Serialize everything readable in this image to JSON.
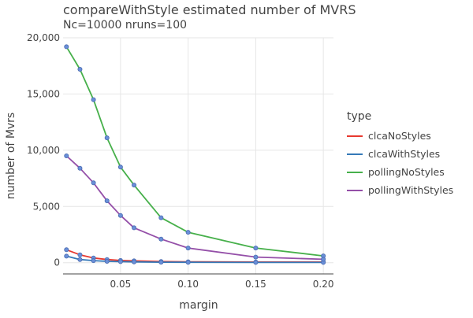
{
  "chart_data": {
    "type": "line",
    "title": "compareWithStyle estimated number of MVRS",
    "subtitle": "Nc=10000 nruns=100",
    "xlabel": "margin",
    "ylabel": "number of Mvrs",
    "xlim": [
      0.0075,
      0.2075
    ],
    "ylim": [
      -1000,
      20000
    ],
    "xticks": [
      {
        "value": 0.05,
        "label": "0.05"
      },
      {
        "value": 0.1,
        "label": "0.10"
      },
      {
        "value": 0.15,
        "label": "0.15"
      },
      {
        "value": 0.2,
        "label": "0.20"
      }
    ],
    "yticks": [
      {
        "value": 0,
        "label": "0"
      },
      {
        "value": 5000,
        "label": "5,000"
      },
      {
        "value": 10000,
        "label": "10,000"
      },
      {
        "value": 15000,
        "label": "15,000"
      },
      {
        "value": 20000,
        "label": "20,000"
      }
    ],
    "grid": true,
    "legend_title": "type",
    "legend_position": "right",
    "marker_color": "#6a8fd8",
    "x": [
      0.01,
      0.02,
      0.03,
      0.04,
      0.05,
      0.06,
      0.08,
      0.1,
      0.15,
      0.2
    ],
    "series": [
      {
        "name": "clcaNoStyles",
        "color": "#e8392f",
        "values": [
          1150,
          700,
          420,
          280,
          200,
          160,
          100,
          80,
          60,
          60
        ]
      },
      {
        "name": "clcaWithStyles",
        "color": "#3579b8",
        "values": [
          580,
          280,
          180,
          120,
          90,
          70,
          40,
          35,
          25,
          20
        ]
      },
      {
        "name": "pollingNoStyles",
        "color": "#47b04b",
        "values": [
          19200,
          17200,
          14500,
          11100,
          8500,
          6900,
          4000,
          2700,
          1300,
          600
        ]
      },
      {
        "name": "pollingWithStyles",
        "color": "#944fa8",
        "values": [
          9500,
          8400,
          7100,
          5500,
          4200,
          3100,
          2100,
          1300,
          500,
          300
        ]
      }
    ]
  }
}
